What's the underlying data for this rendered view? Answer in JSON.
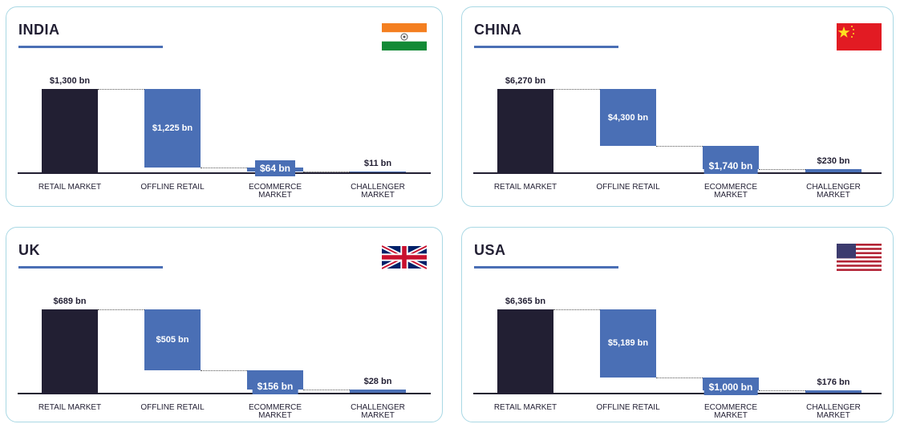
{
  "chart_data": [
    {
      "type": "waterfall",
      "title": "INDIA",
      "categories": [
        "RETAIL MARKET",
        "OFFLINE RETAIL",
        "ECOMMERCE MARKET",
        "CHALLENGER MARKET"
      ],
      "values": [
        1300,
        1225,
        64,
        11
      ],
      "value_labels": [
        "$1,300 bn",
        "$1,225 bn",
        "$64 bn",
        "$11 bn"
      ],
      "colors": [
        "#221f33",
        "#4a6fb5",
        "#4a6fb5",
        "#4a6fb5"
      ]
    },
    {
      "type": "waterfall",
      "title": "CHINA",
      "categories": [
        "RETAIL MARKET",
        "OFFLINE RETAIL",
        "ECOMMERCE MARKET",
        "CHALLENGER MARKET"
      ],
      "values": [
        6270,
        4300,
        1740,
        230
      ],
      "value_labels": [
        "$6,270 bn",
        "$4,300 bn",
        "$1,740 bn",
        "$230 bn"
      ],
      "colors": [
        "#221f33",
        "#4a6fb5",
        "#4a6fb5",
        "#4a6fb5"
      ]
    },
    {
      "type": "waterfall",
      "title": "UK",
      "categories": [
        "RETAIL MARKET",
        "OFFLINE RETAIL",
        "ECOMMERCE MARKET",
        "CHALLENGER MARKET"
      ],
      "values": [
        689,
        505,
        156,
        28
      ],
      "value_labels": [
        "$689 bn",
        "$505 bn",
        "$156 bn",
        "$28 bn"
      ],
      "colors": [
        "#221f33",
        "#4a6fb5",
        "#4a6fb5",
        "#4a6fb5"
      ]
    },
    {
      "type": "waterfall",
      "title": "USA",
      "categories": [
        "RETAIL MARKET",
        "OFFLINE RETAIL",
        "ECOMMERCE MARKET",
        "CHALLENGER MARKET"
      ],
      "values": [
        6365,
        5189,
        1000,
        176
      ],
      "value_labels": [
        "$6,365 bn",
        "$5,189 bn",
        "$1,000 bn",
        "$176 bn"
      ],
      "colors": [
        "#221f33",
        "#4a6fb5",
        "#4a6fb5",
        "#4a6fb5"
      ]
    }
  ]
}
